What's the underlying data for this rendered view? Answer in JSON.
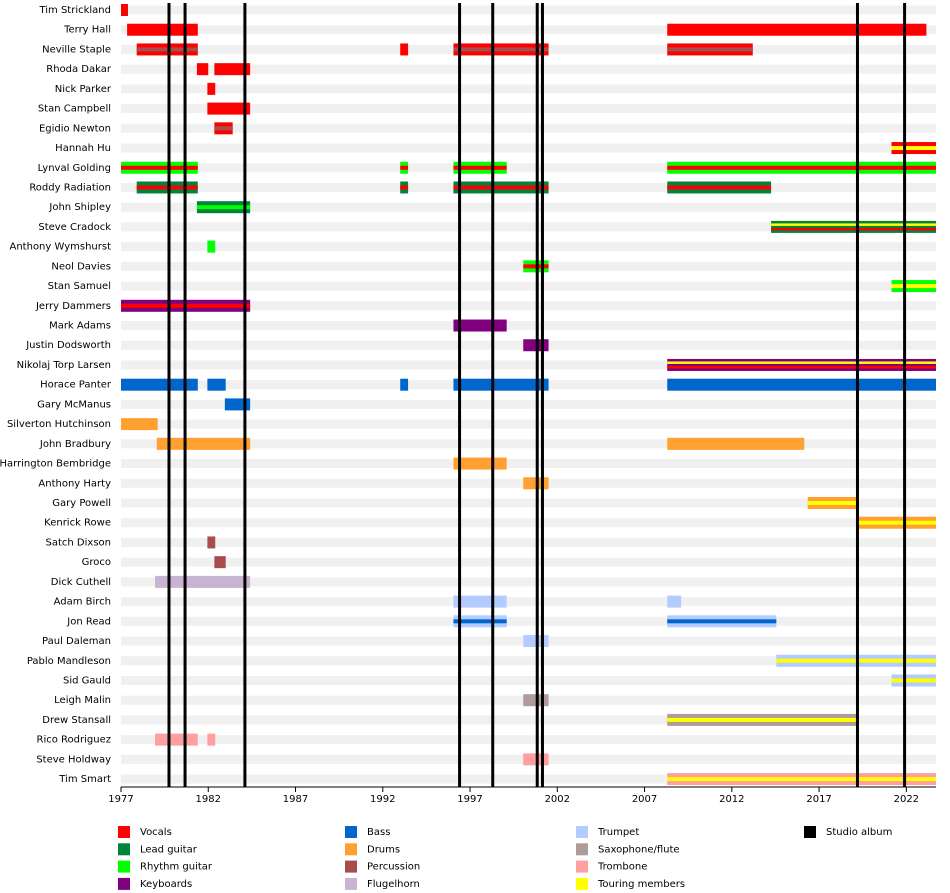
{
  "chart_data": {
    "type": "timeline",
    "xlim": [
      1977,
      2023.7
    ],
    "xticks": [
      1977,
      1982,
      1987,
      1992,
      1997,
      2002,
      2007,
      2012,
      2017,
      2022
    ],
    "studio_albums": [
      1979.75,
      1980.67,
      1984.1,
      1996.4,
      1998.3,
      2000.85,
      2001.15,
      2019.2,
      2021.9
    ],
    "roles": [
      {
        "name": "Vocals",
        "color": "#ff0000"
      },
      {
        "name": "Lead guitar",
        "color": "#00843d"
      },
      {
        "name": "Rhythm guitar",
        "color": "#00ff00"
      },
      {
        "name": "Keyboards",
        "color": "#800080"
      },
      {
        "name": "Bass",
        "color": "#0066cc"
      },
      {
        "name": "Drums",
        "color": "#ffa030"
      },
      {
        "name": "Percussion",
        "color": "#a84c4c"
      },
      {
        "name": "Flugelhorn",
        "color": "#c8b4d0"
      },
      {
        "name": "Trumpet",
        "color": "#b3ccff"
      },
      {
        "name": "Saxophone/flute",
        "color": "#b09b9b"
      },
      {
        "name": "Trombone",
        "color": "#ff9f9f"
      },
      {
        "name": "Touring members",
        "color": "#ffff00"
      },
      {
        "name": "Studio album",
        "color": "#000000"
      }
    ],
    "members": [
      {
        "name": "Tim Strickland",
        "periods": [
          {
            "start": 1977,
            "end": 1977.4,
            "roles": [
              "Vocals"
            ]
          }
        ]
      },
      {
        "name": "Terry Hall",
        "periods": [
          {
            "start": 1977.35,
            "end": 1981.4,
            "roles": [
              "Vocals"
            ]
          },
          {
            "start": 2008.3,
            "end": 2023.15,
            "roles": [
              "Vocals"
            ]
          }
        ]
      },
      {
        "name": "Neville Staple",
        "periods": [
          {
            "start": 1977.9,
            "end": 1981.4,
            "roles": [
              "Vocals",
              "Percussion"
            ]
          },
          {
            "start": 1993,
            "end": 1993.45,
            "roles": [
              "Vocals"
            ]
          },
          {
            "start": 1996.05,
            "end": 2001.5,
            "roles": [
              "Vocals",
              "Percussion"
            ]
          },
          {
            "start": 2008.3,
            "end": 2013.2,
            "roles": [
              "Vocals",
              "Percussion"
            ]
          }
        ]
      },
      {
        "name": "Rhoda Dakar",
        "periods": [
          {
            "start": 1981.35,
            "end": 1982,
            "roles": [
              "Vocals"
            ]
          },
          {
            "start": 1982.35,
            "end": 1984.4,
            "roles": [
              "Vocals"
            ]
          }
        ]
      },
      {
        "name": "Nick Parker",
        "periods": [
          {
            "start": 1981.95,
            "end": 1982.4,
            "roles": [
              "Vocals"
            ]
          }
        ]
      },
      {
        "name": "Stan Campbell",
        "periods": [
          {
            "start": 1981.95,
            "end": 1984.4,
            "roles": [
              "Vocals"
            ]
          }
        ]
      },
      {
        "name": "Egidio Newton",
        "periods": [
          {
            "start": 1982.35,
            "end": 1983.4,
            "roles": [
              "Vocals",
              "Percussion"
            ]
          }
        ]
      },
      {
        "name": "Hannah Hu",
        "periods": [
          {
            "start": 2021.15,
            "end": 2023.7,
            "roles": [
              "Vocals",
              "Touring members"
            ]
          }
        ]
      },
      {
        "name": "Lynval Golding",
        "periods": [
          {
            "start": 1977,
            "end": 1981.4,
            "roles": [
              "Rhythm guitar",
              "Vocals"
            ]
          },
          {
            "start": 1993,
            "end": 1993.45,
            "roles": [
              "Rhythm guitar",
              "Vocals"
            ]
          },
          {
            "start": 1996.05,
            "end": 1999.1,
            "roles": [
              "Rhythm guitar",
              "Vocals"
            ]
          },
          {
            "start": 2008.3,
            "end": 2023.7,
            "roles": [
              "Rhythm guitar",
              "Vocals"
            ]
          }
        ]
      },
      {
        "name": "Roddy Radiation",
        "periods": [
          {
            "start": 1977.9,
            "end": 1981.4,
            "roles": [
              "Lead guitar",
              "Vocals"
            ]
          },
          {
            "start": 1993,
            "end": 1993.45,
            "roles": [
              "Lead guitar",
              "Vocals"
            ]
          },
          {
            "start": 1996.05,
            "end": 2001.5,
            "roles": [
              "Lead guitar",
              "Vocals"
            ]
          },
          {
            "start": 2008.3,
            "end": 2014.25,
            "roles": [
              "Lead guitar",
              "Vocals"
            ]
          }
        ]
      },
      {
        "name": "John Shipley",
        "periods": [
          {
            "start": 1981.35,
            "end": 1984.4,
            "roles": [
              "Lead guitar",
              "Rhythm guitar"
            ]
          }
        ]
      },
      {
        "name": "Steve Cradock",
        "periods": [
          {
            "start": 2014.25,
            "end": 2023.7,
            "roles": [
              "Lead guitar",
              "Touring members",
              "Vocals"
            ]
          }
        ]
      },
      {
        "name": "Anthony Wymshurst",
        "periods": [
          {
            "start": 1981.95,
            "end": 1982.4,
            "roles": [
              "Rhythm guitar"
            ]
          }
        ]
      },
      {
        "name": "Neol Davies",
        "periods": [
          {
            "start": 2000.05,
            "end": 2001.5,
            "roles": [
              "Rhythm guitar",
              "Vocals"
            ]
          }
        ]
      },
      {
        "name": "Stan Samuel",
        "periods": [
          {
            "start": 2021.15,
            "end": 2023.7,
            "roles": [
              "Rhythm guitar",
              "Touring members"
            ]
          }
        ]
      },
      {
        "name": "Jerry Dammers",
        "periods": [
          {
            "start": 1977,
            "end": 1984.4,
            "roles": [
              "Keyboards",
              "Vocals"
            ]
          }
        ]
      },
      {
        "name": "Mark Adams",
        "periods": [
          {
            "start": 1996.05,
            "end": 1999.1,
            "roles": [
              "Keyboards"
            ]
          }
        ]
      },
      {
        "name": "Justin Dodsworth",
        "periods": [
          {
            "start": 2000.05,
            "end": 2001.5,
            "roles": [
              "Keyboards"
            ]
          }
        ]
      },
      {
        "name": "Nikolaj Torp Larsen",
        "periods": [
          {
            "start": 2008.3,
            "end": 2023.7,
            "roles": [
              "Keyboards",
              "Touring members",
              "Vocals"
            ]
          }
        ]
      },
      {
        "name": "Horace Panter",
        "periods": [
          {
            "start": 1977,
            "end": 1981.4,
            "roles": [
              "Bass"
            ]
          },
          {
            "start": 1981.95,
            "end": 1983.0,
            "roles": [
              "Bass"
            ]
          },
          {
            "start": 1993,
            "end": 1993.45,
            "roles": [
              "Bass"
            ]
          },
          {
            "start": 1996.05,
            "end": 2001.5,
            "roles": [
              "Bass"
            ]
          },
          {
            "start": 2008.3,
            "end": 2023.7,
            "roles": [
              "Bass"
            ]
          }
        ]
      },
      {
        "name": "Gary McManus",
        "periods": [
          {
            "start": 1982.95,
            "end": 1984.4,
            "roles": [
              "Bass"
            ]
          }
        ]
      },
      {
        "name": "Silverton Hutchinson",
        "periods": [
          {
            "start": 1977,
            "end": 1979.1,
            "roles": [
              "Drums"
            ]
          }
        ]
      },
      {
        "name": "John Bradbury",
        "periods": [
          {
            "start": 1979.05,
            "end": 1984.4,
            "roles": [
              "Drums"
            ]
          },
          {
            "start": 2008.3,
            "end": 2016.15,
            "roles": [
              "Drums"
            ]
          }
        ]
      },
      {
        "name": "Harrington Bembridge",
        "periods": [
          {
            "start": 1996.05,
            "end": 1999.1,
            "roles": [
              "Drums"
            ]
          }
        ]
      },
      {
        "name": "Anthony Harty",
        "periods": [
          {
            "start": 2000.05,
            "end": 2001.5,
            "roles": [
              "Drums"
            ]
          }
        ]
      },
      {
        "name": "Gary Powell",
        "periods": [
          {
            "start": 2016.35,
            "end": 2019.2,
            "roles": [
              "Drums",
              "Touring members"
            ]
          }
        ]
      },
      {
        "name": "Kenrick Rowe",
        "periods": [
          {
            "start": 2019.2,
            "end": 2023.7,
            "roles": [
              "Drums",
              "Touring members"
            ]
          }
        ]
      },
      {
        "name": "Satch Dixson",
        "periods": [
          {
            "start": 1981.95,
            "end": 1982.4,
            "roles": [
              "Percussion"
            ]
          }
        ]
      },
      {
        "name": "Groco",
        "periods": [
          {
            "start": 1982.35,
            "end": 1983.0,
            "roles": [
              "Percussion"
            ]
          }
        ]
      },
      {
        "name": "Dick Cuthell",
        "periods": [
          {
            "start": 1978.95,
            "end": 1984.4,
            "roles": [
              "Flugelhorn"
            ]
          }
        ]
      },
      {
        "name": "Adam Birch",
        "periods": [
          {
            "start": 1996.05,
            "end": 1999.1,
            "roles": [
              "Trumpet"
            ]
          },
          {
            "start": 2008.3,
            "end": 2009.1,
            "roles": [
              "Trumpet"
            ]
          }
        ]
      },
      {
        "name": "Jon Read",
        "periods": [
          {
            "start": 1996.05,
            "end": 1999.1,
            "roles": [
              "Trumpet",
              "Bass"
            ]
          },
          {
            "start": 2008.3,
            "end": 2014.55,
            "roles": [
              "Trumpet",
              "Bass"
            ]
          }
        ]
      },
      {
        "name": "Paul Daleman",
        "periods": [
          {
            "start": 2000.05,
            "end": 2001.5,
            "roles": [
              "Trumpet"
            ]
          }
        ]
      },
      {
        "name": "Pablo Mandleson",
        "periods": [
          {
            "start": 2014.55,
            "end": 2023.7,
            "roles": [
              "Trumpet",
              "Touring members"
            ]
          }
        ]
      },
      {
        "name": "Sid Gauld",
        "periods": [
          {
            "start": 2021.15,
            "end": 2023.7,
            "roles": [
              "Trumpet",
              "Touring members"
            ]
          }
        ]
      },
      {
        "name": "Leigh Malin",
        "periods": [
          {
            "start": 2000.05,
            "end": 2001.5,
            "roles": [
              "Saxophone/flute"
            ]
          }
        ]
      },
      {
        "name": "Drew Stansall",
        "periods": [
          {
            "start": 2008.3,
            "end": 2019.2,
            "roles": [
              "Saxophone/flute",
              "Touring members"
            ]
          }
        ]
      },
      {
        "name": "Rico Rodriguez",
        "periods": [
          {
            "start": 1978.95,
            "end": 1981.4,
            "roles": [
              "Trombone"
            ]
          },
          {
            "start": 1981.95,
            "end": 1982.4,
            "roles": [
              "Trombone"
            ]
          }
        ]
      },
      {
        "name": "Steve Holdway",
        "periods": [
          {
            "start": 2000.05,
            "end": 2001.5,
            "roles": [
              "Trombone"
            ]
          }
        ]
      },
      {
        "name": "Tim Smart",
        "periods": [
          {
            "start": 2008.3,
            "end": 2023.7,
            "roles": [
              "Trombone",
              "Touring members"
            ]
          }
        ]
      }
    ]
  }
}
